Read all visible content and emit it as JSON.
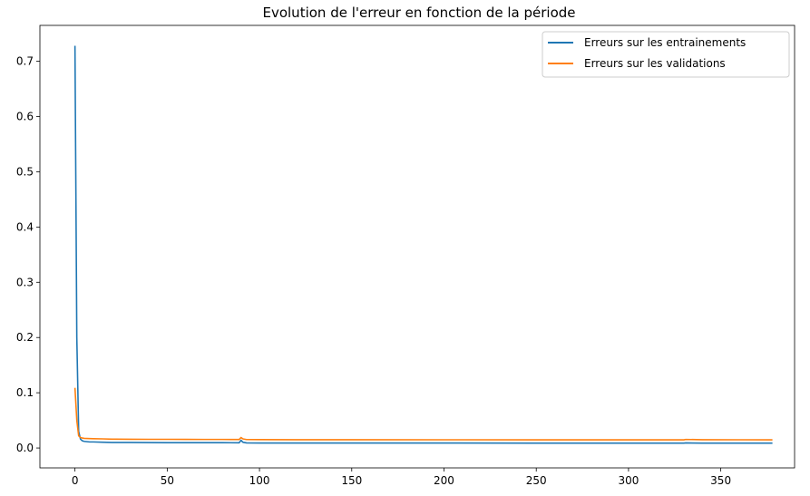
{
  "chart_data": {
    "type": "line",
    "title": "Evolution de l'erreur en fonction de la période",
    "xlabel": "",
    "ylabel": "",
    "xlim": [
      -19,
      390
    ],
    "ylim": [
      -0.036,
      0.765
    ],
    "xticks": [
      0,
      50,
      100,
      150,
      200,
      250,
      300,
      350
    ],
    "yticks": [
      0.0,
      0.1,
      0.2,
      0.3,
      0.4,
      0.5,
      0.6,
      0.7
    ],
    "grid": false,
    "legend_position": "top-right",
    "series": [
      {
        "name": "Erreurs sur les entrainements",
        "color": "#1f77b4",
        "x": [
          0,
          1,
          2,
          3,
          4,
          5,
          8,
          10,
          15,
          20,
          30,
          40,
          50,
          60,
          70,
          80,
          89,
          90,
          91,
          93,
          100,
          120,
          150,
          200,
          250,
          300,
          330,
          331,
          340,
          360,
          378
        ],
        "y": [
          0.728,
          0.2,
          0.03,
          0.016,
          0.013,
          0.012,
          0.011,
          0.011,
          0.0105,
          0.01,
          0.01,
          0.0098,
          0.0097,
          0.0097,
          0.0096,
          0.0096,
          0.0095,
          0.014,
          0.0105,
          0.0092,
          0.0091,
          0.009,
          0.009,
          0.009,
          0.0089,
          0.0088,
          0.0088,
          0.0092,
          0.0089,
          0.0088,
          0.0088
        ]
      },
      {
        "name": "Erreurs sur les validations",
        "color": "#ff7f0e",
        "x": [
          0,
          1,
          2,
          3,
          4,
          5,
          8,
          10,
          15,
          20,
          30,
          40,
          50,
          60,
          70,
          80,
          89,
          90,
          91,
          93,
          100,
          120,
          150,
          200,
          250,
          300,
          330,
          331,
          340,
          360,
          378
        ],
        "y": [
          0.109,
          0.05,
          0.022,
          0.019,
          0.018,
          0.0175,
          0.017,
          0.0168,
          0.0165,
          0.016,
          0.0158,
          0.0157,
          0.0157,
          0.0156,
          0.0155,
          0.0155,
          0.0154,
          0.019,
          0.0165,
          0.0153,
          0.0152,
          0.015,
          0.015,
          0.0149,
          0.0148,
          0.0148,
          0.0148,
          0.0155,
          0.015,
          0.0149,
          0.0148
        ]
      }
    ]
  }
}
